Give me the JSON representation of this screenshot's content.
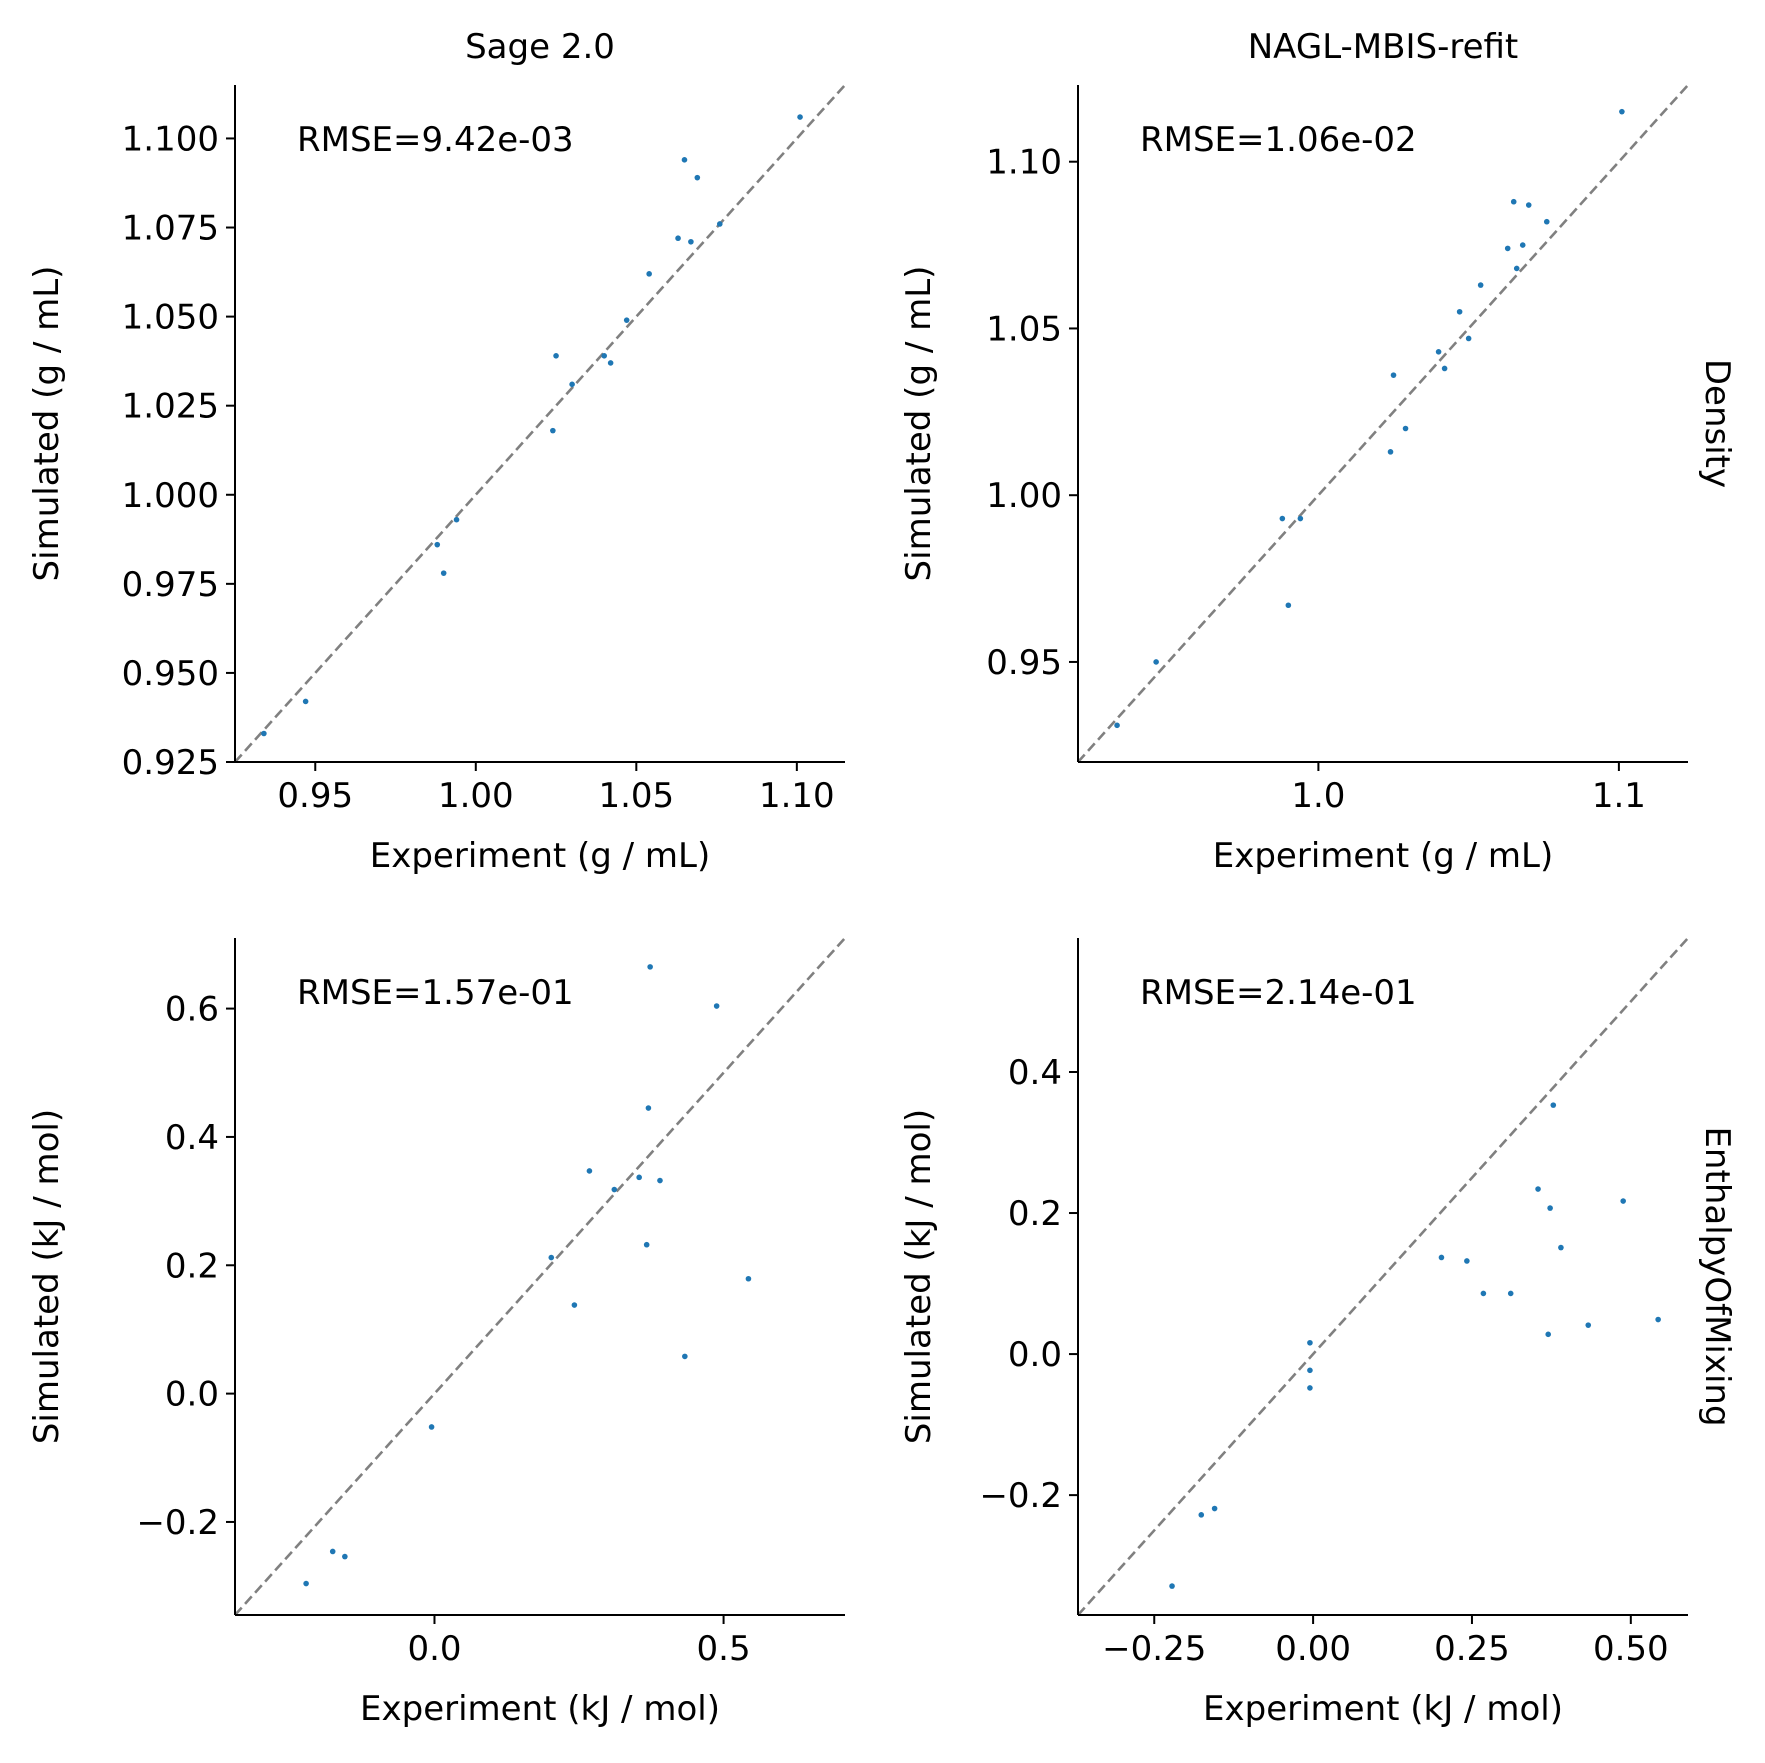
{
  "colors": {
    "points": "#1f77b4",
    "identity_line": "#808080",
    "axes": "#000000"
  },
  "chart_data": [
    {
      "type": "scatter",
      "column_title": "Sage 2.0",
      "row_label": "",
      "annotation": "RMSE=9.42e-03",
      "xlabel": "Experiment (g / mL)",
      "ylabel": "Simulated (g / mL)",
      "xlim": [
        0.925,
        1.115
      ],
      "ylim": [
        0.925,
        1.115
      ],
      "xticks": [
        0.95,
        1.0,
        1.05,
        1.1
      ],
      "xtick_labels": [
        "0.95",
        "1.00",
        "1.05",
        "1.10"
      ],
      "yticks": [
        0.925,
        0.95,
        0.975,
        1.0,
        1.025,
        1.05,
        1.075,
        1.1
      ],
      "ytick_labels": [
        "0.925",
        "0.950",
        "0.975",
        "1.000",
        "1.025",
        "1.050",
        "1.075",
        "1.100"
      ],
      "identity_line": true,
      "points": [
        [
          0.934,
          0.933
        ],
        [
          0.947,
          0.942
        ],
        [
          0.988,
          0.986
        ],
        [
          0.99,
          0.978
        ],
        [
          0.994,
          0.993
        ],
        [
          1.024,
          1.018
        ],
        [
          1.025,
          1.039
        ],
        [
          1.03,
          1.031
        ],
        [
          1.04,
          1.039
        ],
        [
          1.042,
          1.037
        ],
        [
          1.047,
          1.049
        ],
        [
          1.054,
          1.062
        ],
        [
          1.063,
          1.072
        ],
        [
          1.065,
          1.094
        ],
        [
          1.067,
          1.071
        ],
        [
          1.069,
          1.089
        ],
        [
          1.076,
          1.076
        ],
        [
          1.101,
          1.106
        ]
      ]
    },
    {
      "type": "scatter",
      "column_title": "NAGL-MBIS-refit",
      "row_label": "Density",
      "annotation": "RMSE=1.06e-02",
      "xlabel": "Experiment (g / mL)",
      "ylabel": "Simulated (g / mL)",
      "xlim": [
        0.92,
        1.123
      ],
      "ylim": [
        0.92,
        1.123
      ],
      "xticks": [
        1.0,
        1.1
      ],
      "xtick_labels": [
        "1.0",
        "1.1"
      ],
      "yticks": [
        0.95,
        1.0,
        1.05,
        1.1
      ],
      "ytick_labels": [
        "0.95",
        "1.00",
        "1.05",
        "1.10"
      ],
      "identity_line": true,
      "points": [
        [
          0.933,
          0.931
        ],
        [
          0.946,
          0.95
        ],
        [
          0.988,
          0.993
        ],
        [
          0.99,
          0.967
        ],
        [
          0.994,
          0.993
        ],
        [
          1.024,
          1.013
        ],
        [
          1.025,
          1.036
        ],
        [
          1.029,
          1.02
        ],
        [
          1.04,
          1.043
        ],
        [
          1.042,
          1.038
        ],
        [
          1.047,
          1.055
        ],
        [
          1.05,
          1.047
        ],
        [
          1.054,
          1.063
        ],
        [
          1.063,
          1.074
        ],
        [
          1.065,
          1.088
        ],
        [
          1.066,
          1.068
        ],
        [
          1.068,
          1.075
        ],
        [
          1.07,
          1.087
        ],
        [
          1.076,
          1.082
        ],
        [
          1.101,
          1.115
        ]
      ]
    },
    {
      "type": "scatter",
      "column_title": "",
      "row_label": "",
      "annotation": "RMSE=1.57e-01",
      "xlabel": "Experiment (kJ / mol)",
      "ylabel": "Simulated (kJ / mol)",
      "xlim": [
        -0.345,
        0.71
      ],
      "ylim": [
        -0.345,
        0.71
      ],
      "xticks": [
        0.0,
        0.5
      ],
      "xtick_labels": [
        "0.0",
        "0.5"
      ],
      "yticks": [
        -0.2,
        0.0,
        0.2,
        0.4,
        0.6
      ],
      "ytick_labels": [
        "−0.2",
        "0.0",
        "0.2",
        "0.4",
        "0.6"
      ],
      "identity_line": true,
      "points": [
        [
          -0.222,
          -0.296
        ],
        [
          -0.176,
          -0.246
        ],
        [
          -0.155,
          -0.254
        ],
        [
          -0.005,
          -0.052
        ],
        [
          0.202,
          0.212
        ],
        [
          0.242,
          0.138
        ],
        [
          0.268,
          0.347
        ],
        [
          0.311,
          0.318
        ],
        [
          0.354,
          0.337
        ],
        [
          0.367,
          0.232
        ],
        [
          0.37,
          0.445
        ],
        [
          0.373,
          0.665
        ],
        [
          0.39,
          0.332
        ],
        [
          0.433,
          0.058
        ],
        [
          0.488,
          0.604
        ],
        [
          0.543,
          0.179
        ]
      ]
    },
    {
      "type": "scatter",
      "column_title": "",
      "row_label": "EnthalpyOfMixing",
      "annotation": "RMSE=2.14e-01",
      "xlabel": "Experiment (kJ / mol)",
      "ylabel": "Simulated (kJ / mol)",
      "xlim": [
        -0.37,
        0.59
      ],
      "ylim": [
        -0.37,
        0.59
      ],
      "xticks": [
        -0.25,
        0.0,
        0.25,
        0.5
      ],
      "xtick_labels": [
        "−0.25",
        "0.00",
        "0.25",
        "0.50"
      ],
      "yticks": [
        -0.2,
        0.0,
        0.2,
        0.4
      ],
      "ytick_labels": [
        "−0.2",
        "0.0",
        "0.2",
        "0.4"
      ],
      "identity_line": true,
      "points": [
        [
          -0.222,
          -0.329
        ],
        [
          -0.176,
          -0.228
        ],
        [
          -0.155,
          -0.219
        ],
        [
          -0.005,
          0.016
        ],
        [
          -0.005,
          -0.023
        ],
        [
          -0.005,
          -0.048
        ],
        [
          0.202,
          0.137
        ],
        [
          0.242,
          0.132
        ],
        [
          0.268,
          0.086
        ],
        [
          0.311,
          0.086
        ],
        [
          0.354,
          0.234
        ],
        [
          0.37,
          0.028
        ],
        [
          0.373,
          0.207
        ],
        [
          0.378,
          0.353
        ],
        [
          0.39,
          0.151
        ],
        [
          0.433,
          0.041
        ],
        [
          0.488,
          0.217
        ],
        [
          0.543,
          0.049
        ]
      ]
    }
  ]
}
